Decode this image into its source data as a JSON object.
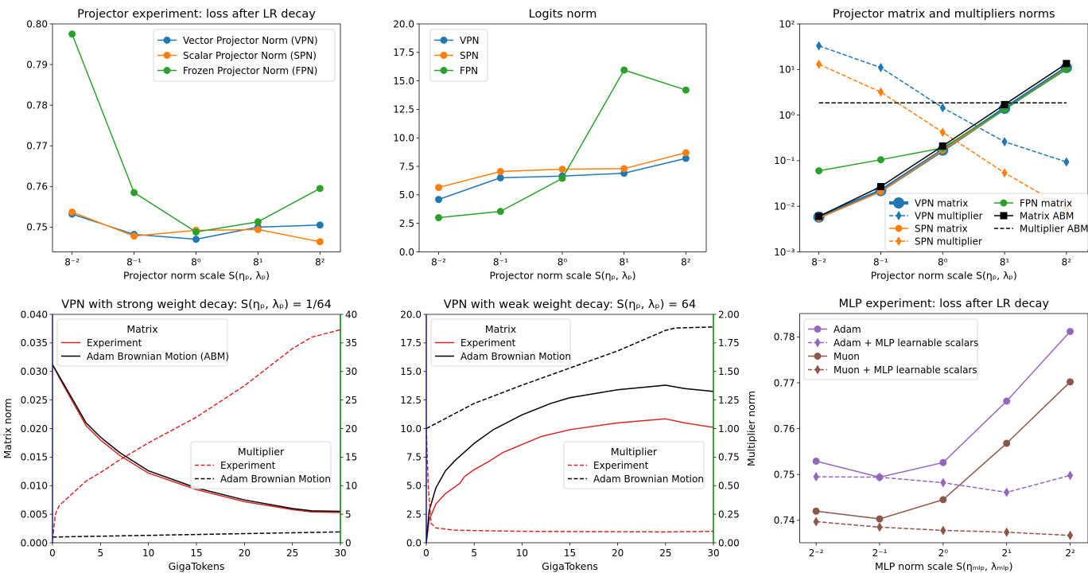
{
  "chart_data": [
    {
      "type": "line",
      "title": "Projector experiment: loss after LR decay",
      "xlabel": "Projector norm scale S(ηₚ, λₚ)",
      "ylabel": "",
      "xscale": "log",
      "xlim": [
        0.0081,
        127
      ],
      "xticks": [
        0.015625,
        0.125,
        1,
        8,
        64
      ],
      "xtick_labels": [
        "8⁻²",
        "8⁻¹",
        "8⁰",
        "8¹",
        "8²"
      ],
      "yscale": "linear",
      "ylim": [
        0.7439,
        0.8
      ],
      "yticks": [
        0.75,
        0.76,
        0.77,
        0.78,
        0.79,
        0.8
      ],
      "ytick_labels": [
        "0.75",
        "0.76",
        "0.77",
        "0.78",
        "0.79",
        "0.80"
      ],
      "grid": false,
      "series": [
        {
          "name": "Vector Projector Norm (VPN)",
          "color": "#1f77b4",
          "linestyle": "solid",
          "marker": "circle",
          "x": [
            0.015625,
            0.125,
            1,
            8,
            64
          ],
          "y": [
            0.7532,
            0.7482,
            0.747,
            0.75,
            0.7505
          ]
        },
        {
          "name": "Scalar Projector Norm (SPN)",
          "color": "#ff7f0e",
          "linestyle": "solid",
          "marker": "circle",
          "x": [
            0.015625,
            0.125,
            1,
            8,
            64
          ],
          "y": [
            0.7537,
            0.7478,
            0.7492,
            0.7494,
            0.7464
          ]
        },
        {
          "name": "Frozen Projector Norm (FPN)",
          "color": "#2ca02c",
          "linestyle": "solid",
          "marker": "circle",
          "x": [
            0.015625,
            0.125,
            1,
            8,
            64
          ],
          "y": [
            0.7975,
            0.7585,
            0.7488,
            0.7513,
            0.7595
          ]
        }
      ],
      "legends": [
        {
          "title": "",
          "position": "upper-right",
          "entries": [
            0,
            1,
            2
          ]
        }
      ]
    },
    {
      "type": "line",
      "title": "Logits norm",
      "xlabel": "Projector norm scale S(ηₚ, λₚ)",
      "ylabel": "",
      "xscale": "log",
      "xlim": [
        0.0081,
        127
      ],
      "xticks": [
        0.015625,
        0.125,
        1,
        8,
        64
      ],
      "xtick_labels": [
        "8⁻²",
        "8⁻¹",
        "8⁰",
        "8¹",
        "8²"
      ],
      "yscale": "linear",
      "ylim": [
        0,
        20
      ],
      "yticks": [
        0,
        2.5,
        5,
        7.5,
        10,
        12.5,
        15,
        17.5,
        20
      ],
      "ytick_labels": [
        "0.0",
        "2.5",
        "5.0",
        "7.5",
        "10.0",
        "12.5",
        "15.0",
        "17.5",
        "20.0"
      ],
      "grid": false,
      "series": [
        {
          "name": "VPN",
          "color": "#1f77b4",
          "linestyle": "solid",
          "marker": "circle",
          "x": [
            0.015625,
            0.125,
            1,
            8,
            64
          ],
          "y": [
            4.6,
            6.5,
            6.65,
            6.9,
            8.2
          ]
        },
        {
          "name": "SPN",
          "color": "#ff7f0e",
          "linestyle": "solid",
          "marker": "circle",
          "x": [
            0.015625,
            0.125,
            1,
            8,
            64
          ],
          "y": [
            5.65,
            7.05,
            7.25,
            7.3,
            8.7
          ]
        },
        {
          "name": "FPN",
          "color": "#2ca02c",
          "linestyle": "solid",
          "marker": "circle",
          "x": [
            0.015625,
            0.125,
            1,
            8,
            64
          ],
          "y": [
            3.0,
            3.55,
            6.45,
            15.95,
            14.2
          ]
        }
      ],
      "legends": [
        {
          "title": "",
          "position": "upper-left",
          "entries": [
            0,
            1,
            2
          ]
        }
      ]
    },
    {
      "type": "line",
      "title": "Projector matrix and multipliers norms",
      "xlabel": "Projector norm scale S(ηₚ, λₚ)",
      "ylabel": "",
      "xscale": "log",
      "xlim": [
        0.0082,
        132
      ],
      "xticks": [
        0.015625,
        0.125,
        1,
        8,
        64
      ],
      "xtick_labels": [
        "8⁻²",
        "8⁻¹",
        "8⁰",
        "8¹",
        "8²"
      ],
      "yscale": "log",
      "ylim": [
        0.001,
        100
      ],
      "yticks": [
        0.001,
        0.01,
        0.1,
        1,
        10,
        100
      ],
      "ytick_labels": [
        "10⁻³",
        "10⁻²",
        "10⁻¹",
        "10⁰",
        "10¹",
        "10²"
      ],
      "grid": false,
      "series": [
        {
          "name": "VPN matrix",
          "color": "#1f77b4",
          "linestyle": "solid",
          "marker": "circle",
          "x": [
            0.015625,
            0.125,
            1,
            8,
            64
          ],
          "y": [
            0.0058,
            0.022,
            0.17,
            1.4,
            11
          ]
        },
        {
          "name": "VPN multiplier",
          "color": "#1f77b4",
          "linestyle": "dashed",
          "marker": "diamond",
          "x": [
            0.015625,
            0.125,
            1,
            8,
            64
          ],
          "y": [
            33,
            11,
            1.45,
            0.26,
            0.094
          ]
        },
        {
          "name": "SPN matrix",
          "color": "#ff7f0e",
          "linestyle": "solid",
          "marker": "circle",
          "x": [
            0.015625,
            0.125,
            1,
            8,
            64
          ],
          "y": [
            0.0055,
            0.021,
            0.17,
            1.35,
            10.5
          ]
        },
        {
          "name": "SPN multiplier",
          "color": "#ff7f0e",
          "linestyle": "dashed",
          "marker": "diamond",
          "x": [
            0.015625,
            0.125,
            1,
            8,
            64
          ],
          "y": [
            13,
            3.2,
            0.42,
            0.054,
            0.009
          ]
        },
        {
          "name": "FPN matrix",
          "color": "#2ca02c",
          "linestyle": "solid",
          "marker": "circle",
          "x": [
            0.015625,
            0.125,
            1,
            8,
            64
          ],
          "y": [
            0.06,
            0.105,
            0.19,
            1.35,
            10
          ]
        },
        {
          "name": "Matrix ABM",
          "color": "#000000",
          "linestyle": "solid",
          "marker": "square",
          "x": [
            0.015625,
            0.125,
            1,
            8,
            64
          ],
          "y": [
            0.006,
            0.027,
            0.21,
            1.7,
            13.5
          ]
        },
        {
          "name": "Multiplier ABM",
          "color": "#000000",
          "linestyle": "dashed",
          "marker": null,
          "x": [
            0.015625,
            0.125,
            1,
            8,
            64
          ],
          "y": [
            1.85,
            1.85,
            1.85,
            1.85,
            1.85
          ]
        }
      ],
      "legends": [
        {
          "title": "",
          "position": "lower-right",
          "columns": 2,
          "entries": [
            0,
            1,
            2,
            3,
            4,
            5,
            6
          ]
        }
      ]
    },
    {
      "type": "line",
      "title": "VPN with strong weight decay: S(ηₚ, λₚ) = 1/64",
      "xlabel": "GigaTokens",
      "ylabel": "Matrix norm",
      "ylabel_color": "#0000ff",
      "xscale": "linear",
      "xlim": [
        0,
        30
      ],
      "xticks": [
        0,
        5,
        10,
        15,
        20,
        25,
        30
      ],
      "xtick_labels": [
        "0",
        "5",
        "10",
        "15",
        "20",
        "25",
        "30"
      ],
      "yscale": "linear",
      "ylim": [
        0,
        0.04
      ],
      "yticks": [
        0,
        0.005,
        0.01,
        0.015,
        0.02,
        0.025,
        0.03,
        0.035,
        0.04
      ],
      "ytick_labels": [
        "0.000",
        "0.005",
        "0.010",
        "0.015",
        "0.020",
        "0.025",
        "0.030",
        "0.035",
        "0.040"
      ],
      "ytick_color": "#0000ff",
      "y2": {
        "label": "",
        "color": "#008000",
        "lim": [
          0,
          40
        ],
        "ticks": [
          0,
          5,
          10,
          15,
          20,
          25,
          30,
          35,
          40
        ],
        "tick_labels": [
          "0",
          "5",
          "10",
          "15",
          "20",
          "25",
          "30",
          "35",
          "40"
        ]
      },
      "grid": false,
      "series": [
        {
          "name": "Experiment",
          "color": "#d62728",
          "linestyle": "solid",
          "marker": null,
          "axis": "left",
          "x": [
            0,
            1,
            2,
            3.5,
            5,
            7,
            10,
            15,
            20,
            25,
            27,
            30
          ],
          "y": [
            0.0312,
            0.028,
            0.025,
            0.0205,
            0.018,
            0.0153,
            0.0122,
            0.0093,
            0.0072,
            0.0058,
            0.0054,
            0.0053
          ]
        },
        {
          "name": "Adam Brownian Motion (ABM)",
          "color": "#000000",
          "linestyle": "solid",
          "marker": null,
          "axis": "left",
          "x": [
            0,
            1,
            2,
            3.5,
            5,
            7,
            10,
            15,
            20,
            25,
            27,
            30
          ],
          "y": [
            0.0312,
            0.0283,
            0.0254,
            0.021,
            0.0185,
            0.0158,
            0.0126,
            0.0096,
            0.0075,
            0.006,
            0.0056,
            0.0055
          ]
        },
        {
          "name": "Experiment",
          "color": "#d62728",
          "linestyle": "dashed",
          "marker": null,
          "axis": "right",
          "x": [
            0,
            0.3,
            0.7,
            2,
            3.5,
            5,
            7,
            10,
            15,
            20,
            25,
            27,
            30
          ],
          "y": [
            0.5,
            5,
            6.5,
            8.5,
            10.8,
            12.3,
            14.5,
            17.5,
            22,
            27.5,
            34,
            36,
            37.3
          ]
        },
        {
          "name": "Adam Brownian Motion",
          "color": "#000000",
          "linestyle": "dashed",
          "marker": null,
          "axis": "right",
          "x": [
            0,
            30
          ],
          "y": [
            1.0,
            1.9
          ]
        }
      ],
      "legends": [
        {
          "title": "Matrix",
          "title_color": "#0000ff",
          "position": "upper-left",
          "entries": [
            0,
            1
          ]
        },
        {
          "title": "Multiplier",
          "title_color": "#008000",
          "position": "center-right",
          "entries": [
            2,
            3
          ]
        }
      ]
    },
    {
      "type": "line",
      "title": "VPN with weak weight decay: S(ηₚ, λₚ) = 64",
      "xlabel": "GigaTokens",
      "ylabel": "",
      "xscale": "linear",
      "xlim": [
        0,
        30
      ],
      "xticks": [
        0,
        5,
        10,
        15,
        20,
        25,
        30
      ],
      "xtick_labels": [
        "0",
        "5",
        "10",
        "15",
        "20",
        "25",
        "30"
      ],
      "yscale": "linear",
      "ylim": [
        0,
        20
      ],
      "yticks": [
        0,
        2.5,
        5,
        7.5,
        10,
        12.5,
        15,
        17.5,
        20
      ],
      "ytick_labels": [
        "0.0",
        "2.5",
        "5.0",
        "7.5",
        "10.0",
        "12.5",
        "15.0",
        "17.5",
        "20.0"
      ],
      "ytick_color": "#0000ff",
      "y2": {
        "label": "Multiplier norm",
        "color": "#008000",
        "lim": [
          0,
          2
        ],
        "ticks": [
          0,
          0.25,
          0.5,
          0.75,
          1,
          1.25,
          1.5,
          1.75,
          2
        ],
        "tick_labels": [
          "0.00",
          "0.25",
          "0.50",
          "0.75",
          "1.00",
          "1.25",
          "1.50",
          "1.75",
          "2.00"
        ]
      },
      "grid": false,
      "series": [
        {
          "name": "Experiment",
          "color": "#d62728",
          "linestyle": "solid",
          "marker": null,
          "axis": "left",
          "x": [
            0,
            0.3,
            1,
            2,
            3,
            3.5,
            4,
            5,
            6.5,
            8,
            10,
            12,
            15,
            20,
            25,
            27,
            30
          ],
          "y": [
            0,
            2,
            3.4,
            4.3,
            4.9,
            5.2,
            5.8,
            6.4,
            7.1,
            7.9,
            8.6,
            9.3,
            9.9,
            10.5,
            10.85,
            10.5,
            10.1
          ]
        },
        {
          "name": "Adam Brownian Motion",
          "color": "#000000",
          "linestyle": "solid",
          "marker": null,
          "axis": "left",
          "x": [
            0,
            0.3,
            1,
            2,
            3,
            5,
            7,
            10,
            13,
            15,
            20,
            25,
            27,
            30
          ],
          "y": [
            0,
            2.8,
            4.8,
            6.3,
            7.2,
            8.7,
            9.9,
            11.2,
            12.2,
            12.7,
            13.4,
            13.8,
            13.5,
            13.25
          ]
        },
        {
          "name": "Experiment",
          "color": "#d62728",
          "linestyle": "dashed",
          "marker": null,
          "axis": "right",
          "x": [
            0,
            0.2,
            0.5,
            1,
            3,
            10,
            25,
            30
          ],
          "y": [
            1.0,
            0.5,
            0.17,
            0.13,
            0.11,
            0.1,
            0.095,
            0.1
          ]
        },
        {
          "name": "Adam Brownian Motion",
          "color": "#000000",
          "linestyle": "dashed",
          "marker": null,
          "axis": "right",
          "x": [
            0,
            5,
            10,
            15,
            20,
            25,
            26,
            30
          ],
          "y": [
            1.0,
            1.22,
            1.38,
            1.53,
            1.68,
            1.86,
            1.88,
            1.89
          ]
        }
      ],
      "legends": [
        {
          "title": "Matrix",
          "title_color": "#0000ff",
          "position": "upper-left",
          "entries": [
            0,
            1
          ]
        },
        {
          "title": "Multiplier",
          "title_color": "#008000",
          "position": "center-right",
          "entries": [
            2,
            3
          ]
        }
      ]
    },
    {
      "type": "line",
      "title": "MLP experiment: loss after LR decay",
      "xlabel": "MLP norm scale S(ηₘₗₚ, λₘₗₚ)",
      "ylabel": "",
      "xscale": "log",
      "xlim": [
        0.209,
        4.86
      ],
      "xticks": [
        0.25,
        0.5,
        1,
        2,
        4
      ],
      "xtick_labels": [
        "2⁻²",
        "2⁻¹",
        "2⁰",
        "2¹",
        "2²"
      ],
      "yscale": "linear",
      "ylim": [
        0.7351,
        0.7851
      ],
      "yticks": [
        0.74,
        0.75,
        0.76,
        0.77,
        0.78
      ],
      "ytick_labels": [
        "0.74",
        "0.75",
        "0.76",
        "0.77",
        "0.78"
      ],
      "grid": false,
      "series": [
        {
          "name": "Adam",
          "color": "#9467bd",
          "linestyle": "solid",
          "marker": "circle",
          "x": [
            0.25,
            0.5,
            1,
            2,
            4
          ],
          "y": [
            0.7529,
            0.7494,
            0.7526,
            0.766,
            0.7812
          ]
        },
        {
          "name": "Adam + MLP learnable scalars",
          "color": "#9467bd",
          "linestyle": "dashed",
          "marker": "diamond",
          "x": [
            0.25,
            0.5,
            1,
            2,
            4
          ],
          "y": [
            0.7495,
            0.7494,
            0.7482,
            0.7461,
            0.7498
          ]
        },
        {
          "name": "Muon",
          "color": "#8c564b",
          "linestyle": "solid",
          "marker": "circle",
          "x": [
            0.25,
            0.5,
            1,
            2,
            4
          ],
          "y": [
            0.742,
            0.7403,
            0.7445,
            0.7568,
            0.7702
          ]
        },
        {
          "name": "Muon + MLP learnable scalars",
          "color": "#8c564b",
          "linestyle": "dashed",
          "marker": "diamond",
          "x": [
            0.25,
            0.5,
            1,
            2,
            4
          ],
          "y": [
            0.7397,
            0.7385,
            0.7378,
            0.7374,
            0.7367
          ]
        }
      ],
      "legends": [
        {
          "title": "",
          "position": "upper-left",
          "entries": [
            0,
            1,
            2,
            3
          ]
        }
      ]
    }
  ]
}
